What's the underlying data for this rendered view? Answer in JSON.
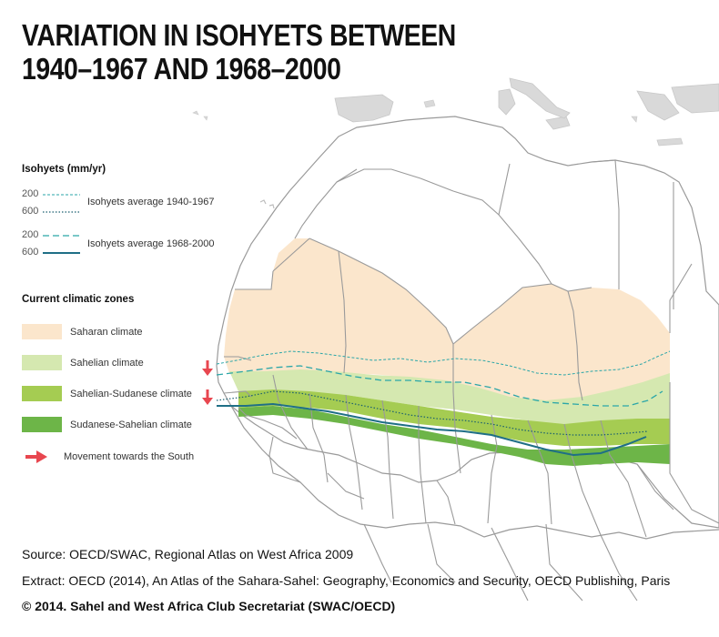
{
  "title": {
    "line1": "VARIATION IN ISOHYETS BETWEEN",
    "line2": "1940–1967 AND 1968–2000"
  },
  "legend": {
    "isohyets_heading": "Isohyets (mm/yr)",
    "isohyets": [
      {
        "label": "Isohyets average 1940-1967",
        "values": [
          "200",
          "600"
        ],
        "style": "dotted-thin",
        "color": "#2aa6a8"
      },
      {
        "label": "Isohyets average 1968-2000",
        "values": [
          "200",
          "600"
        ],
        "style": "dashed-solid",
        "color": "#1f7a8c"
      }
    ],
    "zones_heading": "Current climatic zones",
    "zones": [
      {
        "label": "Saharan climate",
        "color": "#fbe6cc"
      },
      {
        "label": "Sahelian climate",
        "color": "#d5e8b0"
      },
      {
        "label": "Sahelian-Sudanese climate",
        "color": "#a5cc52"
      },
      {
        "label": "Sudanese-Sahelian climate",
        "color": "#6db548"
      }
    ],
    "movement": {
      "label": "Movement towards the South",
      "color": "#e8464f"
    }
  },
  "colors": {
    "border": "#9a9a9a",
    "land": "#ffffff",
    "sea_dark": "#dadada"
  },
  "footer": {
    "source": "Source: OECD/SWAC, Regional Atlas on West Africa 2009",
    "extract": "Extract: OECD (2014), An Atlas of the Sahara-Sahel: Geography, Economics  and Security, OECD Publishing, Paris",
    "copyright": "© 2014. Sahel and West Africa Club Secretariat (SWAC/OECD)"
  }
}
